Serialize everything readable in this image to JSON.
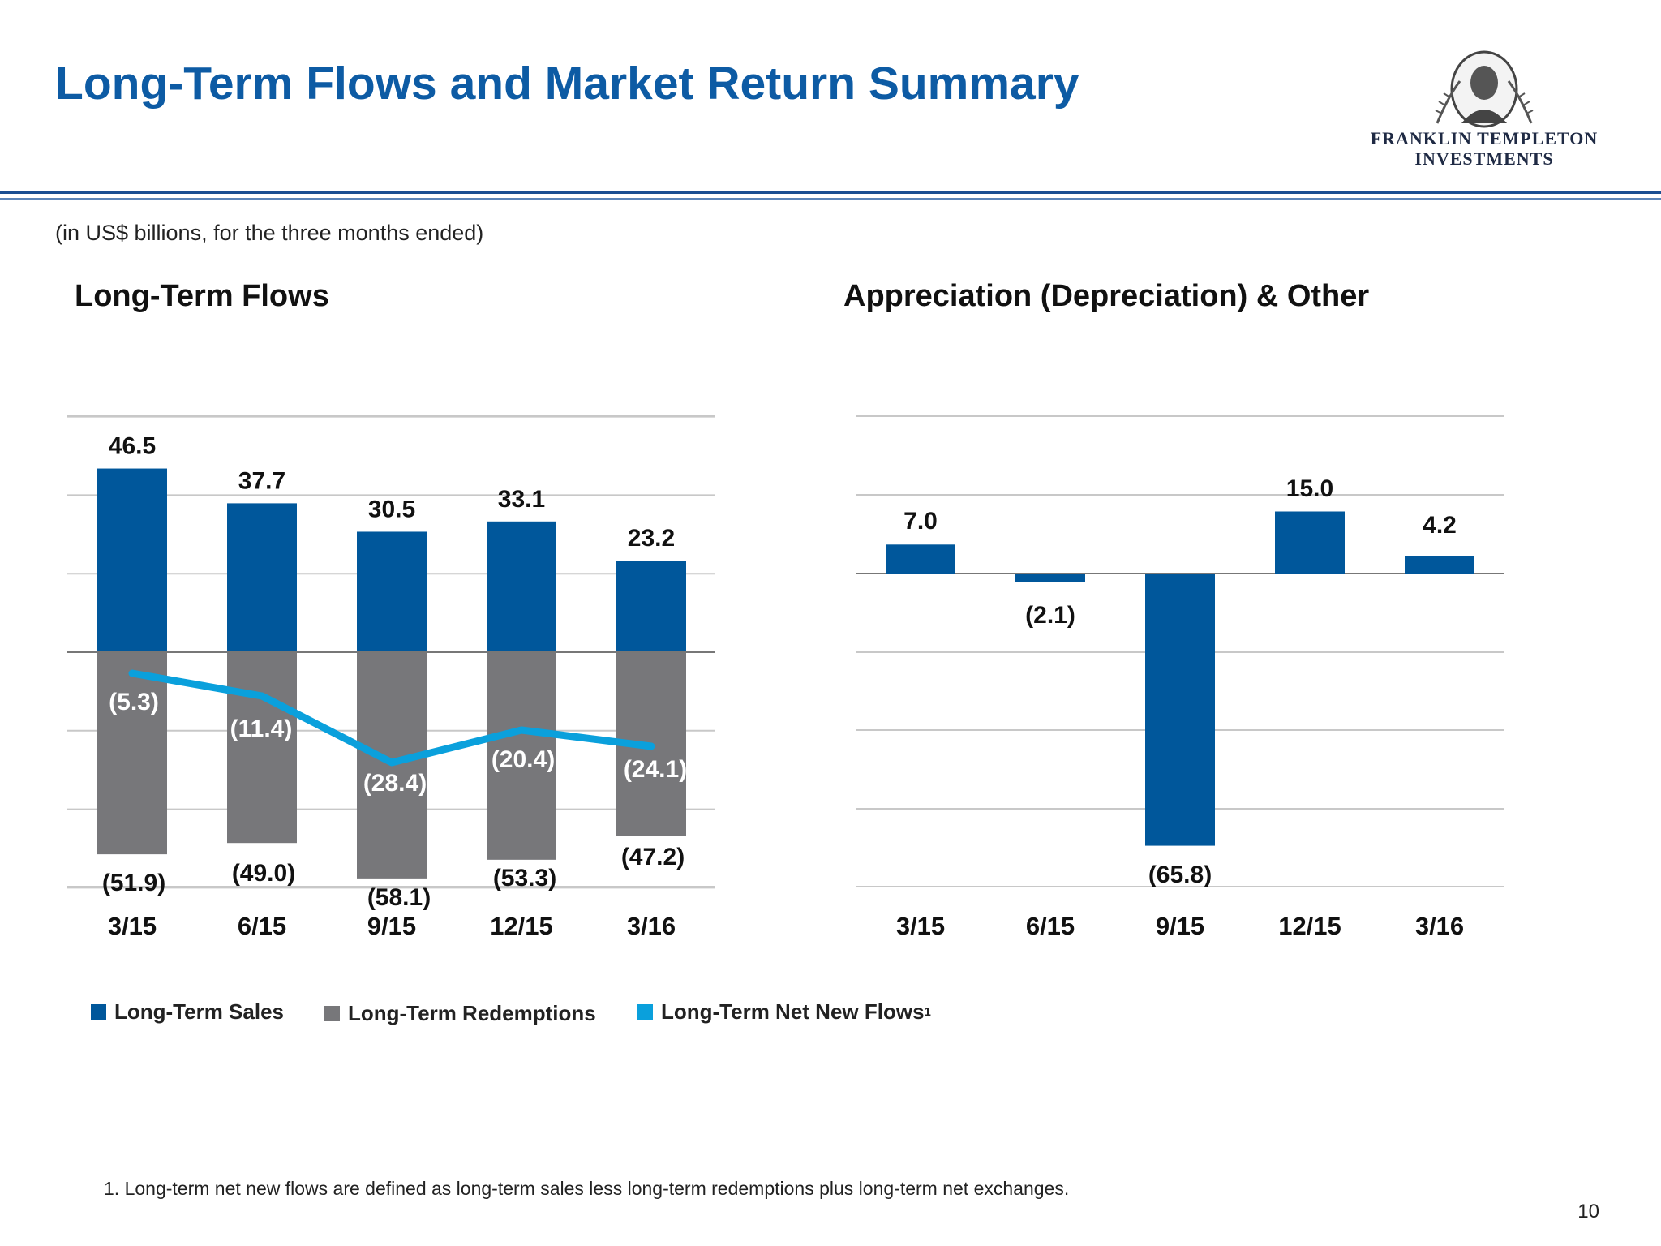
{
  "header": {
    "title": "Long-Term Flows and Market Return Summary",
    "logo_line1": "FRANKLIN TEMPLETON",
    "logo_line2": "INVESTMENTS"
  },
  "subtitle": "(in US$ billions, for the three months ended)",
  "colors": {
    "title": "#0d5ba4",
    "sales": "#00579b",
    "redemptions": "#77777a",
    "net_flows": "#0aa0dc",
    "gridline": "#c8c8c8"
  },
  "chart_data": [
    {
      "type": "bar",
      "title": "Long-Term Flows",
      "categories": [
        "3/15",
        "6/15",
        "9/15",
        "12/15",
        "3/16"
      ],
      "series": [
        {
          "name": "Long-Term Sales",
          "values": [
            46.5,
            37.7,
            30.5,
            33.1,
            23.2
          ],
          "labels": [
            "46.5",
            "37.7",
            "30.5",
            "33.1",
            "23.2"
          ]
        },
        {
          "name": "Long-Term Redemptions",
          "values": [
            -51.9,
            -49.0,
            -58.1,
            -53.3,
            -47.2
          ],
          "labels": [
            "(51.9)",
            "(49.0)",
            "(58.1)",
            "(53.3)",
            "(47.2)"
          ]
        },
        {
          "name": "Long-Term Net New Flows",
          "values": [
            -5.3,
            -11.4,
            -28.4,
            -20.4,
            -24.1
          ],
          "labels": [
            "(5.3)",
            "(11.4)",
            "(28.4)",
            "(20.4)",
            "(24.1)"
          ],
          "render": "line"
        }
      ],
      "ylim": [
        -60,
        60
      ],
      "grid": true
    },
    {
      "type": "bar",
      "title": "Appreciation (Depreciation) & Other",
      "categories": [
        "3/15",
        "6/15",
        "9/15",
        "12/15",
        "3/16"
      ],
      "series": [
        {
          "values": [
            7.0,
            -2.1,
            -65.8,
            15.0,
            4.2
          ],
          "labels": [
            "7.0",
            "(2.1)",
            "(65.8)",
            "15.0",
            "4.2"
          ]
        }
      ],
      "ylim": [
        -80,
        40
      ],
      "grid": true
    }
  ],
  "legend": {
    "sales": "Long-Term Sales",
    "redemptions": "Long-Term Redemptions",
    "net_flows": "Long-Term Net New Flows",
    "net_flows_sup": "1"
  },
  "footnote": "1. Long-term net new flows are defined as long-term sales less long-term redemptions plus long-term net exchanges.",
  "page_number": "10"
}
